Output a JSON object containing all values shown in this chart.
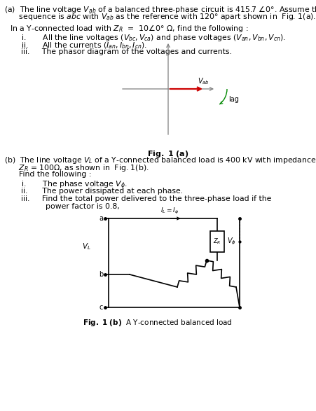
{
  "bg_color": "#ffffff",
  "text_color": "#000000",
  "arrow_color": "#cc0000",
  "lag_arc_color": "#008800",
  "axis_color": "#808080",
  "lc": "#000000",
  "part_a_line1": "(a)  The line voltage $V_{ab}$ of a balanced three-phase circuit is 415.7 $\\angle$0°. Assume the phase",
  "part_a_line2": "      sequence is $abc$ with $V_{ab}$ as the reference with 120° apart shown in  Fig. 1(a).",
  "part_a_sub": "In a Y-connected load with $Z_R$  =  10$\\angle$0° Ω, find the following :",
  "part_a_i": "i.       All the line voltages ($V_{bc}, V_{ca}$) and phase voltages ($V_{an}, V_{bn}, V_{cn}$).",
  "part_a_ii": "ii.      All the currents ($I_{an}, I_{bn}, I_{cn}$).",
  "part_a_iii": "iii.     The phasor diagram of the voltages and currents.",
  "fig1a_label": "Fig. 1 (a)",
  "part_b_line1": "(b)  The line voltage $V_L$ of a Y-connected balanced load is 400 kV with impedance",
  "part_b_line2": "      $Z_R$ = 100Ω, as shown in  Fig. 1(b).",
  "part_b_line3": "      Find the following :",
  "part_b_i": "i.       The phase voltage $V_\\phi$.",
  "part_b_ii": "ii.      The power dissipated at each phase.",
  "part_b_iii": "iii.     Find the total power delivered to the three-phase load if the",
  "part_b_iv": "          power factor is 0.8,",
  "fig1b_label": "Fig. 1 (b) A Y-connected balanced load"
}
